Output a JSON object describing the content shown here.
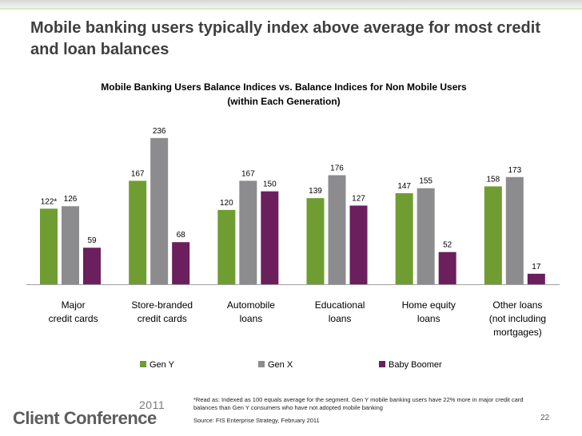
{
  "slide": {
    "title": "Mobile banking users typically index above average for most credit and loan balances",
    "conference_year": "2011",
    "conference_name": "Client Conference",
    "page_number": "22",
    "footnote": "*Read as: Indexed as 100 equals average for the segment. Gen Y mobile banking users have 22% more in major credit card balances than Gen Y consumers who have not adopted mobile banking",
    "source": "Source: FIS Enterprise Strategy, February 2011"
  },
  "colors": {
    "gen_y": "#6f9d32",
    "gen_x": "#8c8c8f",
    "baby_boomer": "#6b1f5c"
  },
  "chart_data": {
    "type": "bar",
    "title": "Mobile Banking Users Balance Indices vs.  Balance Indices for Non Mobile Users (within Each Generation)",
    "title_lines": [
      "Mobile Banking Users Balance Indices vs.  Balance Indices for Non Mobile Users",
      "(within Each Generation)"
    ],
    "categories": [
      "Major credit cards",
      "Store-branded credit cards",
      "Automobile loans",
      "Educational loans",
      "Home equity loans",
      "Other loans (not including mortgages)"
    ],
    "category_lines": [
      [
        "Major",
        "credit cards"
      ],
      [
        "Store-branded",
        "credit cards"
      ],
      [
        "Automobile",
        "loans"
      ],
      [
        "Educational",
        "loans"
      ],
      [
        "Home equity",
        "loans"
      ],
      [
        "Other loans",
        "(not including",
        "mortgages)"
      ]
    ],
    "series": [
      {
        "name": "Gen Y",
        "values": [
          122,
          167,
          120,
          139,
          147,
          158
        ]
      },
      {
        "name": "Gen X",
        "values": [
          126,
          236,
          167,
          176,
          155,
          173
        ]
      },
      {
        "name": "Baby Boomer",
        "values": [
          59,
          68,
          150,
          127,
          52,
          17
        ]
      }
    ],
    "data_labels": [
      [
        "122*",
        "167",
        "120",
        "139",
        "147",
        "158"
      ],
      [
        "126",
        "236",
        "167",
        "176",
        "155",
        "173"
      ],
      [
        "59",
        "68",
        "150",
        "127",
        "52",
        "17"
      ]
    ],
    "ylim": [
      0,
      250
    ],
    "xlabel": "",
    "ylabel": "",
    "grid": false,
    "legend_position": "bottom"
  }
}
